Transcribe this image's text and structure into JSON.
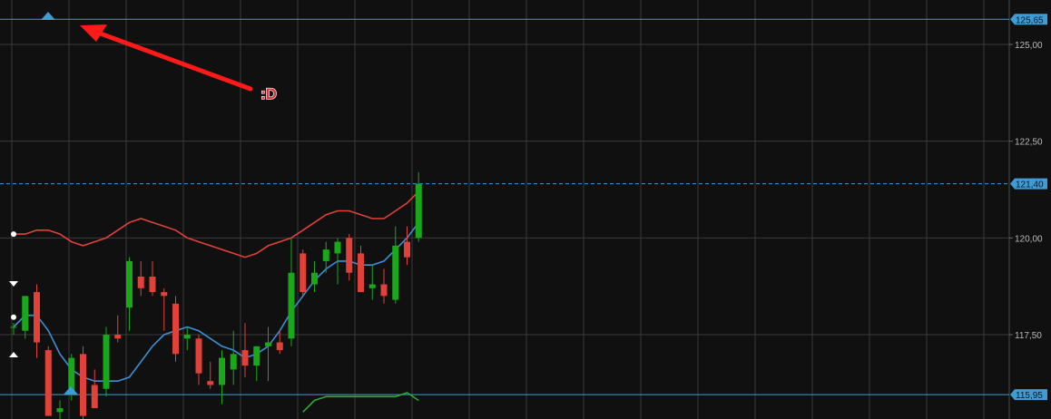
{
  "chart_data": {
    "type": "candlestick",
    "grid": true,
    "ylim": [
      115.7,
      126.2
    ],
    "y_ticks": [
      "125,00",
      "122,50",
      "120,00",
      "117,50"
    ],
    "y_tick_values": [
      125.0,
      122.5,
      120.0,
      117.5
    ],
    "horizontal_levels": [
      {
        "value": 125.65,
        "label": "125,65",
        "style": "solid",
        "color": "#3d9bd6"
      },
      {
        "value": 121.4,
        "label": "121,40",
        "style": "dashed",
        "color": "#3d9bd6"
      },
      {
        "value": 115.95,
        "label": "115,95",
        "style": "solid",
        "color": "#3d9bd6"
      }
    ],
    "candles": [
      {
        "o": 117.7,
        "h": 117.8,
        "l": 117.5,
        "c": 117.7
      },
      {
        "o": 117.6,
        "h": 118.4,
        "l": 117.4,
        "c": 118.5
      },
      {
        "o": 118.6,
        "h": 118.8,
        "l": 116.9,
        "c": 117.3
      },
      {
        "o": 117.1,
        "h": 117.2,
        "l": 115.5,
        "c": 115.4
      },
      {
        "o": 115.5,
        "h": 115.8,
        "l": 115.2,
        "c": 115.6
      },
      {
        "o": 116.0,
        "h": 117.0,
        "l": 115.8,
        "c": 116.9
      },
      {
        "o": 117.0,
        "h": 117.2,
        "l": 115.3,
        "c": 115.4
      },
      {
        "o": 116.2,
        "h": 116.6,
        "l": 115.6,
        "c": 115.6
      },
      {
        "o": 116.1,
        "h": 117.7,
        "l": 115.9,
        "c": 117.5
      },
      {
        "o": 117.5,
        "h": 118.0,
        "l": 117.3,
        "c": 117.4
      },
      {
        "o": 118.2,
        "h": 119.5,
        "l": 117.6,
        "c": 119.4
      },
      {
        "o": 119.0,
        "h": 119.4,
        "l": 118.5,
        "c": 118.7
      },
      {
        "o": 119.0,
        "h": 119.4,
        "l": 118.5,
        "c": 118.6
      },
      {
        "o": 118.6,
        "h": 118.7,
        "l": 117.6,
        "c": 118.5
      },
      {
        "o": 118.3,
        "h": 118.5,
        "l": 116.8,
        "c": 117.0
      },
      {
        "o": 117.4,
        "h": 117.7,
        "l": 117.1,
        "c": 117.5
      },
      {
        "o": 117.4,
        "h": 117.5,
        "l": 116.2,
        "c": 116.5
      },
      {
        "o": 116.3,
        "h": 116.8,
        "l": 116.1,
        "c": 116.2
      },
      {
        "o": 116.2,
        "h": 117.1,
        "l": 115.7,
        "c": 116.9
      },
      {
        "o": 116.6,
        "h": 117.6,
        "l": 116.2,
        "c": 117.0
      },
      {
        "o": 117.1,
        "h": 117.8,
        "l": 116.4,
        "c": 116.7
      },
      {
        "o": 116.7,
        "h": 117.1,
        "l": 116.3,
        "c": 117.2
      },
      {
        "o": 117.2,
        "h": 117.7,
        "l": 116.3,
        "c": 117.3
      },
      {
        "o": 117.3,
        "h": 117.6,
        "l": 117.0,
        "c": 117.1
      },
      {
        "o": 117.4,
        "h": 120.0,
        "l": 117.2,
        "c": 119.1
      },
      {
        "o": 119.6,
        "h": 119.7,
        "l": 118.5,
        "c": 118.6
      },
      {
        "o": 118.8,
        "h": 119.4,
        "l": 118.6,
        "c": 119.1
      },
      {
        "o": 119.4,
        "h": 119.9,
        "l": 119.1,
        "c": 119.7
      },
      {
        "o": 119.6,
        "h": 120.0,
        "l": 118.8,
        "c": 119.9
      },
      {
        "o": 120.0,
        "h": 120.1,
        "l": 118.9,
        "c": 119.1
      },
      {
        "o": 119.6,
        "h": 119.8,
        "l": 118.6,
        "c": 118.6
      },
      {
        "o": 118.7,
        "h": 119.3,
        "l": 118.4,
        "c": 118.8
      },
      {
        "o": 118.8,
        "h": 119.2,
        "l": 118.3,
        "c": 118.5
      },
      {
        "o": 118.4,
        "h": 120.3,
        "l": 118.3,
        "c": 119.8
      },
      {
        "o": 119.9,
        "h": 120.3,
        "l": 119.3,
        "c": 119.5
      },
      {
        "o": 120.0,
        "h": 121.7,
        "l": 119.9,
        "c": 121.4
      }
    ],
    "series": [
      {
        "type": "line",
        "color": "#e0423a",
        "values": [
          120.1,
          120.1,
          120.2,
          120.2,
          120.1,
          119.9,
          119.8,
          119.9,
          120.0,
          120.2,
          120.4,
          120.5,
          120.4,
          120.3,
          120.2,
          120.0,
          119.9,
          119.8,
          119.7,
          119.6,
          119.5,
          119.6,
          119.8,
          119.9,
          120.0,
          120.2,
          120.4,
          120.6,
          120.7,
          120.7,
          120.6,
          120.5,
          120.5,
          120.7,
          120.9,
          121.2
        ]
      },
      {
        "type": "line",
        "color": "#3c8fd8",
        "values": [
          117.7,
          118.0,
          118.0,
          117.6,
          117.0,
          116.6,
          116.4,
          116.3,
          116.3,
          116.3,
          116.4,
          116.8,
          117.2,
          117.5,
          117.6,
          117.7,
          117.6,
          117.4,
          117.2,
          117.1,
          116.9,
          117.0,
          117.2,
          117.6,
          118.1,
          118.5,
          118.9,
          119.2,
          119.4,
          119.4,
          119.3,
          119.3,
          119.4,
          119.7,
          120.0,
          120.4
        ]
      },
      {
        "type": "line",
        "color": "#2cab2c",
        "values": [
          null,
          null,
          null,
          null,
          null,
          null,
          null,
          null,
          null,
          null,
          null,
          null,
          null,
          null,
          null,
          null,
          null,
          null,
          null,
          null,
          null,
          null,
          null,
          null,
          null,
          115.5,
          115.8,
          115.9,
          115.9,
          115.9,
          115.9,
          115.9,
          115.9,
          115.9,
          116.0,
          115.8
        ]
      }
    ],
    "annotations": [
      {
        "label": ":D",
        "kind": "text"
      }
    ]
  }
}
